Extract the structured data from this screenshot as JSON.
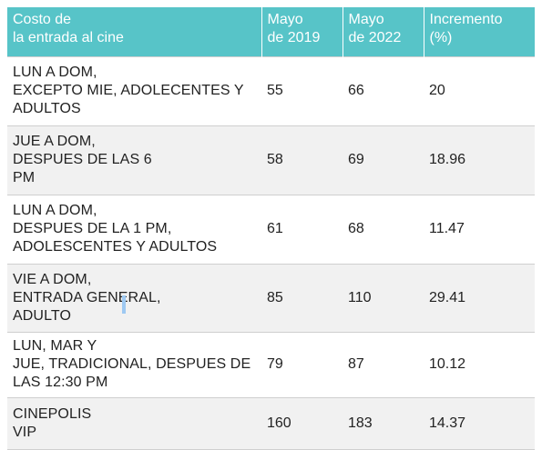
{
  "chart_data": {
    "type": "table",
    "columns": [
      "Costo de\nla entrada al cine",
      "Mayo\nde 2019",
      "Mayo\nde 2022",
      "Incremento\n(%)"
    ],
    "rows": [
      [
        "LUN A DOM,\nEXCEPTO MIE, ADOLECENTES Y\nADULTOS",
        "55",
        "66",
        "20"
      ],
      [
        "JUE A DOM,\nDESPUES DE LAS 6\nPM",
        "58",
        "69",
        "18.96"
      ],
      [
        "LUN A DOM,\nDESPUES DE LA 1 PM,\nADOLESCENTES Y ADULTOS",
        "61",
        "68",
        "11.47"
      ],
      [
        "VIE A DOM,\nENTRADA GENERAL,\nADULTO",
        "85",
        "110",
        "29.41"
      ],
      [
        "LUN, MAR Y\nJUE, TRADICIONAL, DESPUES DE\nLAS 12:30 PM",
        "79",
        "87",
        "10.12"
      ],
      [
        "CINEPOLIS\nVIP",
        "160",
        "183",
        "14.37"
      ]
    ],
    "colors": {
      "header_bg": "#57c4c8",
      "header_text": "#ffffff",
      "stripe_bg": "#f1f1f1",
      "cursor": "#9ec9f2"
    }
  }
}
